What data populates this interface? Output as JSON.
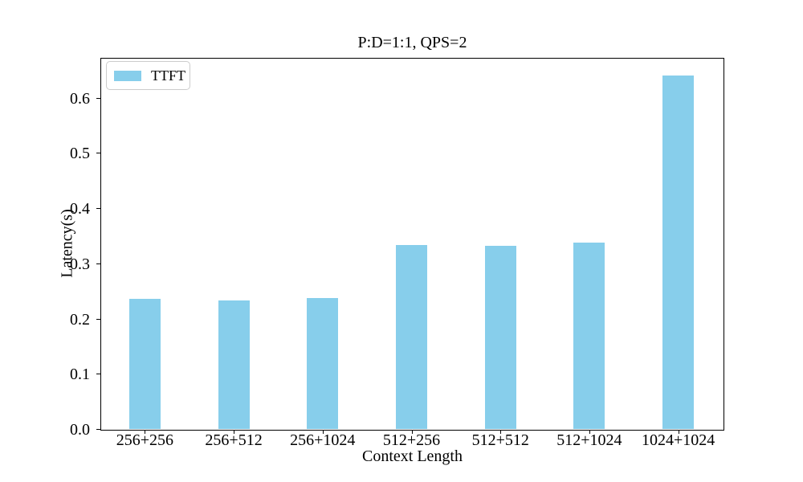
{
  "chart_data": {
    "type": "bar",
    "title": "P:D=1:1, QPS=2",
    "xlabel": "Context Length",
    "ylabel": "Latency(s)",
    "categories": [
      "256+256",
      "256+512",
      "256+1024",
      "512+256",
      "512+512",
      "512+1024",
      "1024+1024"
    ],
    "series": [
      {
        "name": "TTFT",
        "color": "#87ceeb",
        "values": [
          0.236,
          0.233,
          0.237,
          0.333,
          0.332,
          0.338,
          0.64
        ]
      }
    ],
    "ylim": [
      0,
      0.672
    ],
    "ytick_labels": [
      "0.0",
      "0.1",
      "0.2",
      "0.3",
      "0.4",
      "0.5",
      "0.6"
    ],
    "grid": false,
    "legend": {
      "position": "upper-left",
      "entries": [
        {
          "label": "TTFT",
          "color": "#87ceeb"
        }
      ]
    },
    "background_color": "#ffffff",
    "axis_color": "#000000"
  }
}
